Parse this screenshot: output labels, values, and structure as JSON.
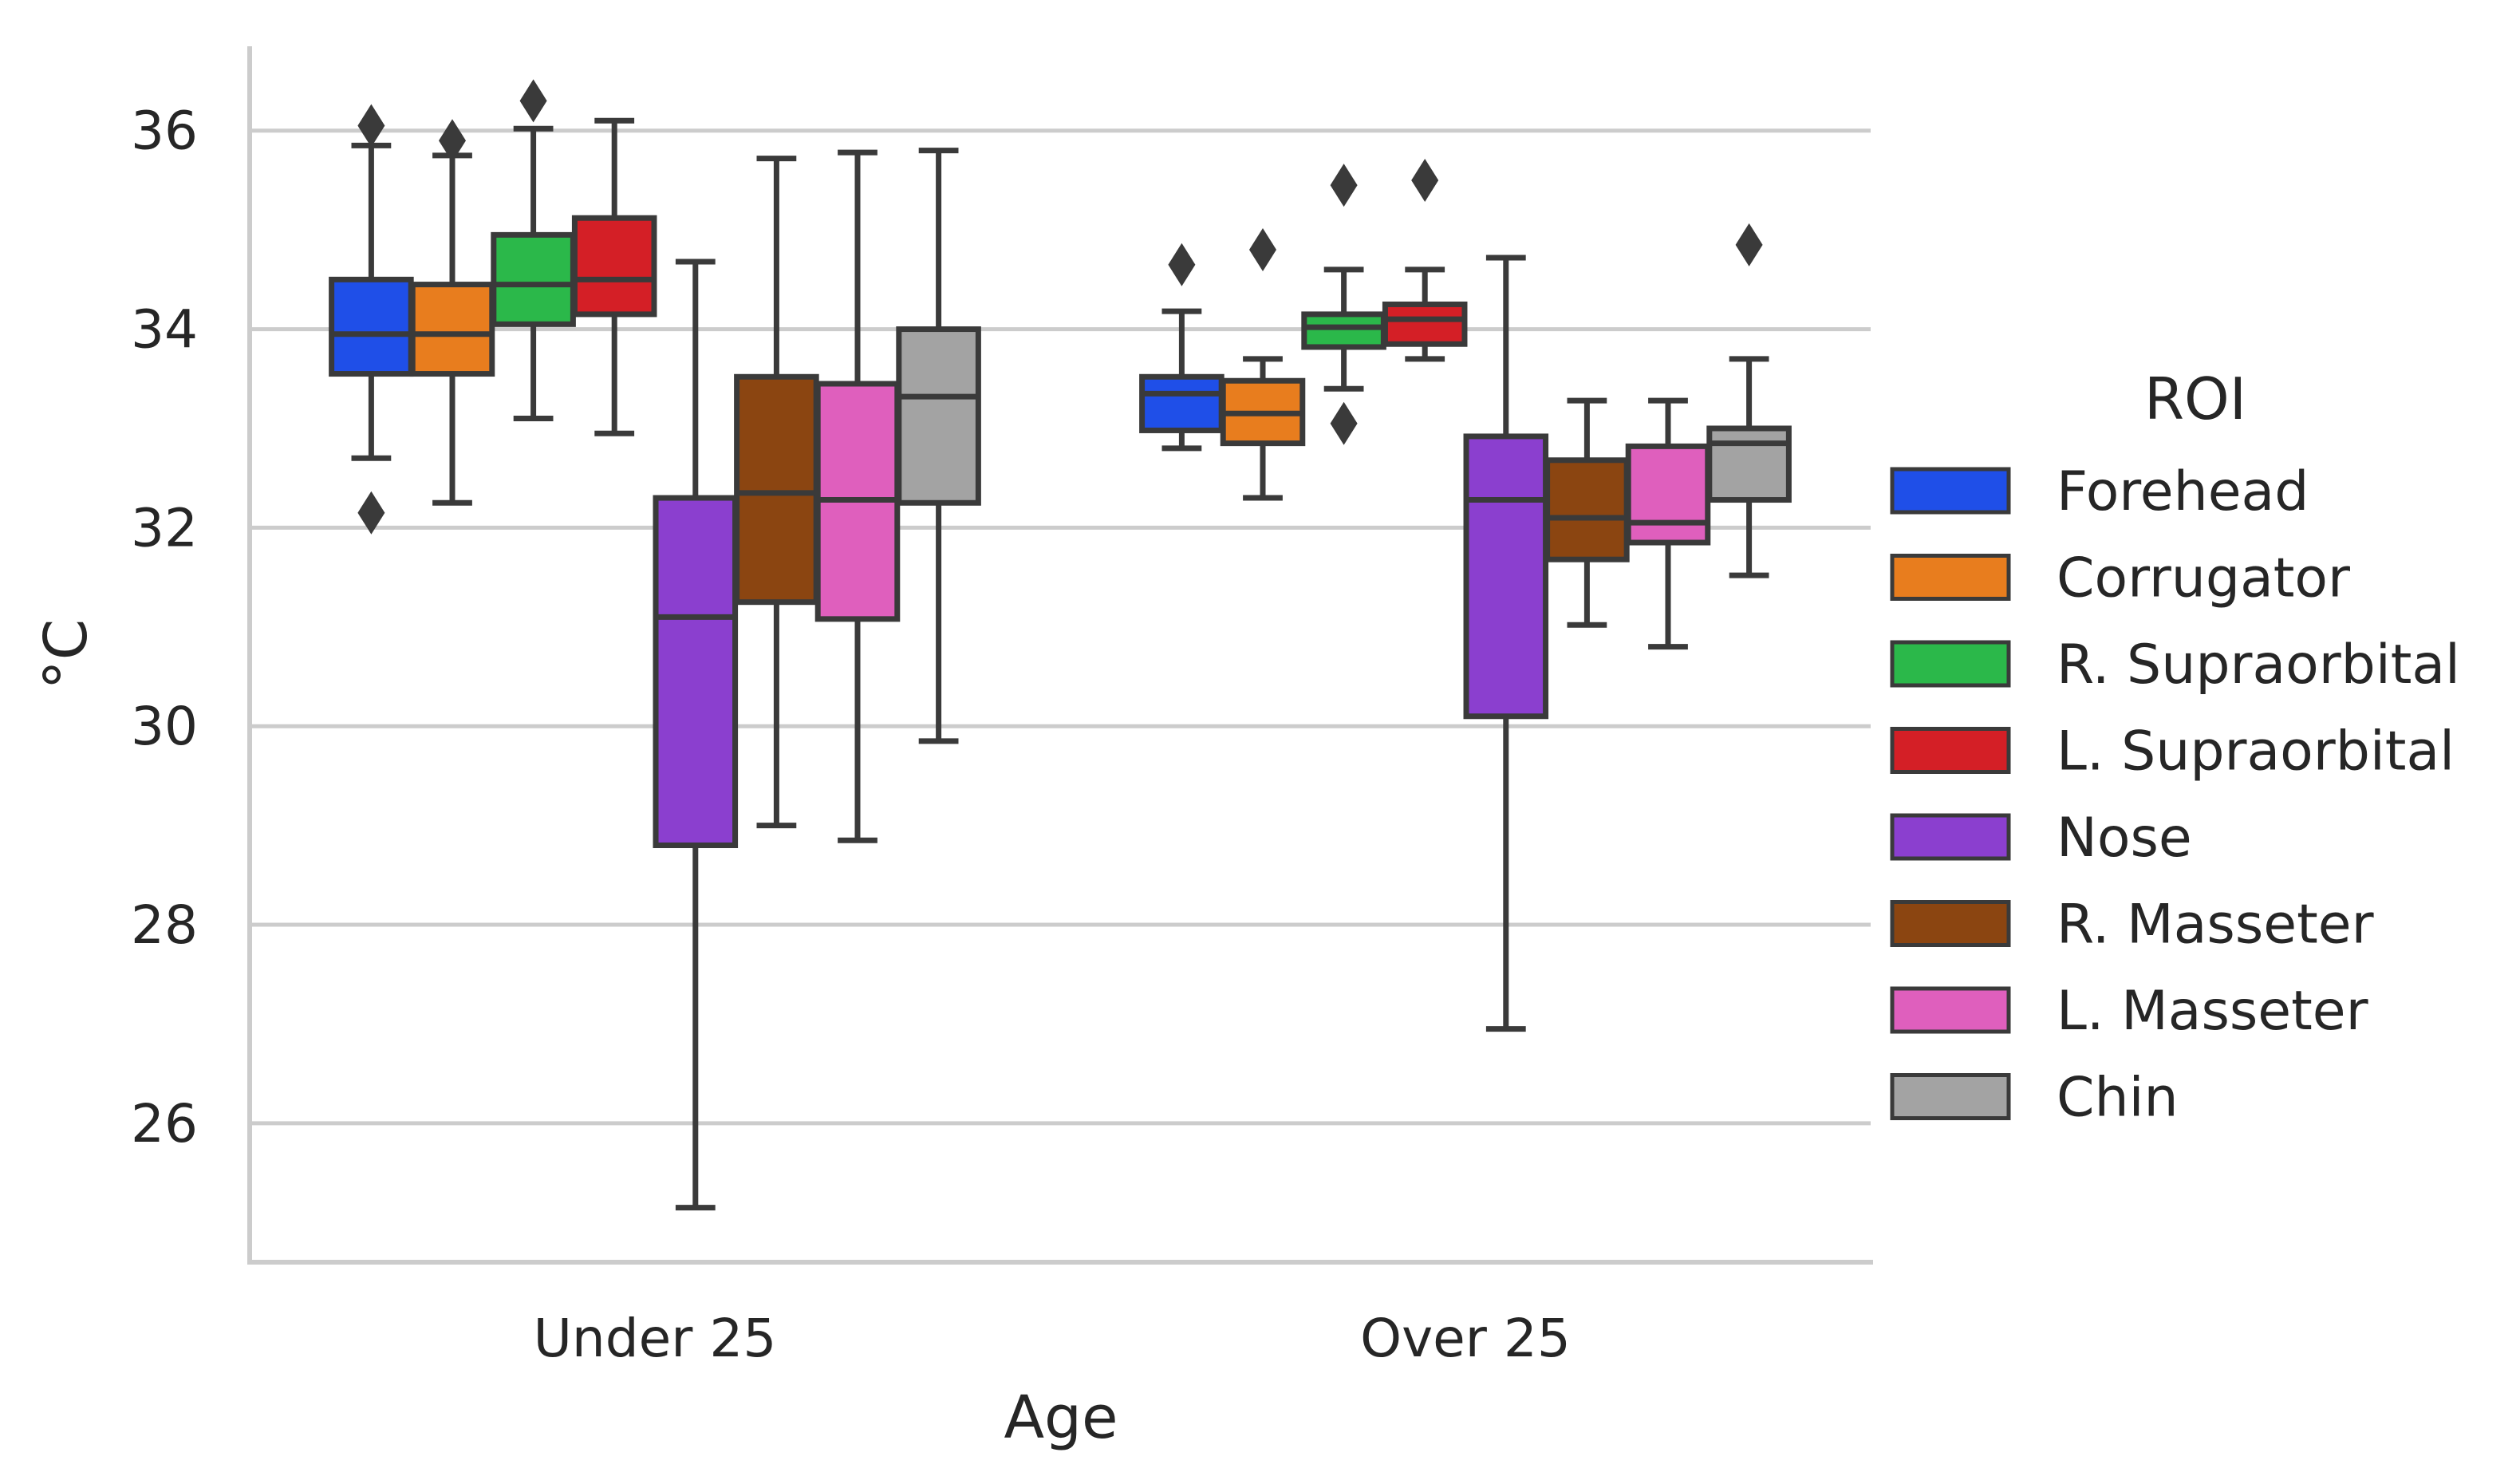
{
  "chart_data": {
    "type": "boxplot",
    "xlabel": "Age",
    "ylabel": "°C",
    "ylim": [
      24.6,
      36.85
    ],
    "yticks": [
      26,
      28,
      30,
      32,
      34,
      36
    ],
    "ytick_labels": [
      "26",
      "28",
      "30",
      "32",
      "34",
      "36"
    ],
    "categories": [
      "Under 25",
      "Over 25"
    ],
    "legend": {
      "title": "ROI",
      "placement": "right"
    },
    "grid": "horizontal",
    "series": [
      {
        "name": "Forehead",
        "color": "#1f4fe8",
        "boxes": [
          {
            "whisker_low": 32.7,
            "q1": 33.55,
            "median": 33.95,
            "q3": 34.5,
            "whisker_high": 35.85,
            "outliers": [
              32.15,
              36.05
            ]
          },
          {
            "whisker_low": 32.8,
            "q1": 32.98,
            "median": 33.35,
            "q3": 33.52,
            "whisker_high": 34.18,
            "outliers": [
              34.65
            ]
          }
        ]
      },
      {
        "name": "Corrugator",
        "color": "#e87d1e",
        "boxes": [
          {
            "whisker_low": 32.25,
            "q1": 33.55,
            "median": 33.95,
            "q3": 34.45,
            "whisker_high": 35.75,
            "outliers": [
              35.9
            ]
          },
          {
            "whisker_low": 32.3,
            "q1": 32.85,
            "median": 33.15,
            "q3": 33.48,
            "whisker_high": 33.7,
            "outliers": [
              34.8
            ]
          }
        ]
      },
      {
        "name": "R. Supraorbital",
        "color": "#2bb84a",
        "boxes": [
          {
            "whisker_low": 33.1,
            "q1": 34.05,
            "median": 34.45,
            "q3": 34.95,
            "whisker_high": 36.02,
            "outliers": [
              36.3
            ]
          },
          {
            "whisker_low": 33.4,
            "q1": 33.82,
            "median": 34.02,
            "q3": 34.15,
            "whisker_high": 34.6,
            "outliers": [
              33.05,
              35.45
            ]
          }
        ]
      },
      {
        "name": "L. Supraorbital",
        "color": "#d41f26",
        "boxes": [
          {
            "whisker_low": 32.95,
            "q1": 34.15,
            "median": 34.5,
            "q3": 35.12,
            "whisker_high": 36.1,
            "outliers": []
          },
          {
            "whisker_low": 33.7,
            "q1": 33.85,
            "median": 34.1,
            "q3": 34.25,
            "whisker_high": 34.6,
            "outliers": [
              35.5
            ]
          }
        ]
      },
      {
        "name": "Nose",
        "color": "#8b3fcf",
        "boxes": [
          {
            "whisker_low": 25.15,
            "q1": 28.8,
            "median": 31.1,
            "q3": 32.3,
            "whisker_high": 34.68,
            "outliers": []
          },
          {
            "whisker_low": 26.95,
            "q1": 30.1,
            "median": 32.28,
            "q3": 32.92,
            "whisker_high": 34.72,
            "outliers": []
          }
        ]
      },
      {
        "name": "R. Masseter",
        "color": "#8b4511",
        "boxes": [
          {
            "whisker_low": 29.0,
            "q1": 31.25,
            "median": 32.35,
            "q3": 33.52,
            "whisker_high": 35.72,
            "outliers": []
          },
          {
            "whisker_low": 31.02,
            "q1": 31.68,
            "median": 32.1,
            "q3": 32.68,
            "whisker_high": 33.28,
            "outliers": []
          }
        ]
      },
      {
        "name": "L. Masseter",
        "color": "#df5fbd",
        "boxes": [
          {
            "whisker_low": 28.85,
            "q1": 31.08,
            "median": 32.28,
            "q3": 33.45,
            "whisker_high": 35.78,
            "outliers": []
          },
          {
            "whisker_low": 30.8,
            "q1": 31.85,
            "median": 32.05,
            "q3": 32.82,
            "whisker_high": 33.28,
            "outliers": []
          }
        ]
      },
      {
        "name": "Chin",
        "color": "#a3a3a3",
        "boxes": [
          {
            "whisker_low": 29.85,
            "q1": 32.25,
            "median": 33.32,
            "q3": 34.0,
            "whisker_high": 35.8,
            "outliers": []
          },
          {
            "whisker_low": 31.52,
            "q1": 32.28,
            "median": 32.85,
            "q3": 33.0,
            "whisker_high": 33.7,
            "outliers": [
              34.85
            ]
          }
        ]
      }
    ]
  }
}
